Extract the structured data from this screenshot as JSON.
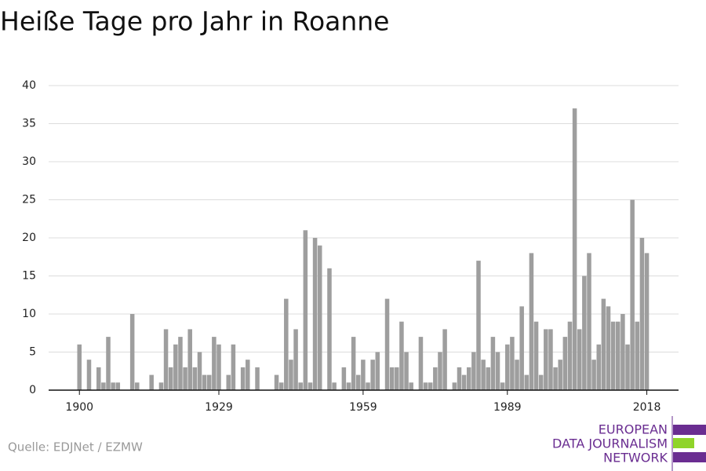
{
  "chart_data": {
    "type": "bar",
    "title": "Heiße Tage pro Jahr in Roanne",
    "source": "Quelle: EDJNet / EZMW",
    "logo": [
      "EUROPEAN",
      "DATA JOURNALISM",
      "NETWORK"
    ],
    "x": [
      1900,
      1901,
      1902,
      1903,
      1904,
      1905,
      1906,
      1907,
      1908,
      1909,
      1910,
      1911,
      1912,
      1913,
      1914,
      1915,
      1916,
      1917,
      1918,
      1919,
      1920,
      1921,
      1922,
      1923,
      1924,
      1925,
      1926,
      1927,
      1928,
      1929,
      1930,
      1931,
      1932,
      1933,
      1934,
      1935,
      1936,
      1937,
      1938,
      1939,
      1940,
      1941,
      1942,
      1943,
      1944,
      1945,
      1946,
      1947,
      1948,
      1949,
      1950,
      1951,
      1952,
      1953,
      1954,
      1955,
      1956,
      1957,
      1958,
      1959,
      1960,
      1961,
      1962,
      1963,
      1964,
      1965,
      1966,
      1967,
      1968,
      1969,
      1970,
      1971,
      1972,
      1973,
      1974,
      1975,
      1976,
      1977,
      1978,
      1979,
      1980,
      1981,
      1982,
      1983,
      1984,
      1985,
      1986,
      1987,
      1988,
      1989,
      1990,
      1991,
      1992,
      1993,
      1994,
      1995,
      1996,
      1997,
      1998,
      1999,
      2000,
      2001,
      2002,
      2003,
      2004,
      2005,
      2006,
      2007,
      2008,
      2009,
      2010,
      2011,
      2012,
      2013,
      2014,
      2015,
      2016,
      2017,
      2018
    ],
    "values": [
      6,
      0,
      4,
      0,
      3,
      1,
      7,
      1,
      1,
      0,
      0,
      10,
      1,
      0,
      0,
      2,
      0,
      1,
      8,
      3,
      6,
      7,
      3,
      8,
      3,
      5,
      2,
      2,
      7,
      6,
      0,
      2,
      6,
      0,
      3,
      4,
      0,
      3,
      0,
      0,
      0,
      2,
      1,
      12,
      4,
      8,
      1,
      21,
      1,
      20,
      19,
      0,
      16,
      1,
      0,
      3,
      1,
      7,
      2,
      4,
      1,
      4,
      5,
      0,
      12,
      3,
      3,
      9,
      5,
      1,
      0,
      7,
      1,
      1,
      3,
      5,
      8,
      0,
      1,
      3,
      2,
      3,
      5,
      17,
      4,
      3,
      7,
      5,
      1,
      6,
      7,
      4,
      11,
      2,
      18,
      9,
      2,
      8,
      8,
      3,
      4,
      7,
      9,
      37,
      8,
      15,
      18,
      4,
      6,
      12,
      11,
      9,
      9,
      10,
      6,
      25,
      9,
      20,
      18
    ],
    "color": "#9e9e9e",
    "xlim": [
      1893.6,
      2024.6
    ],
    "xticks": [
      1900,
      1929,
      1959,
      1989,
      2018
    ],
    "ylim": [
      0,
      40
    ],
    "yticks": [
      0,
      5,
      10,
      15,
      20,
      25,
      30,
      35,
      40
    ],
    "grid": true
  }
}
